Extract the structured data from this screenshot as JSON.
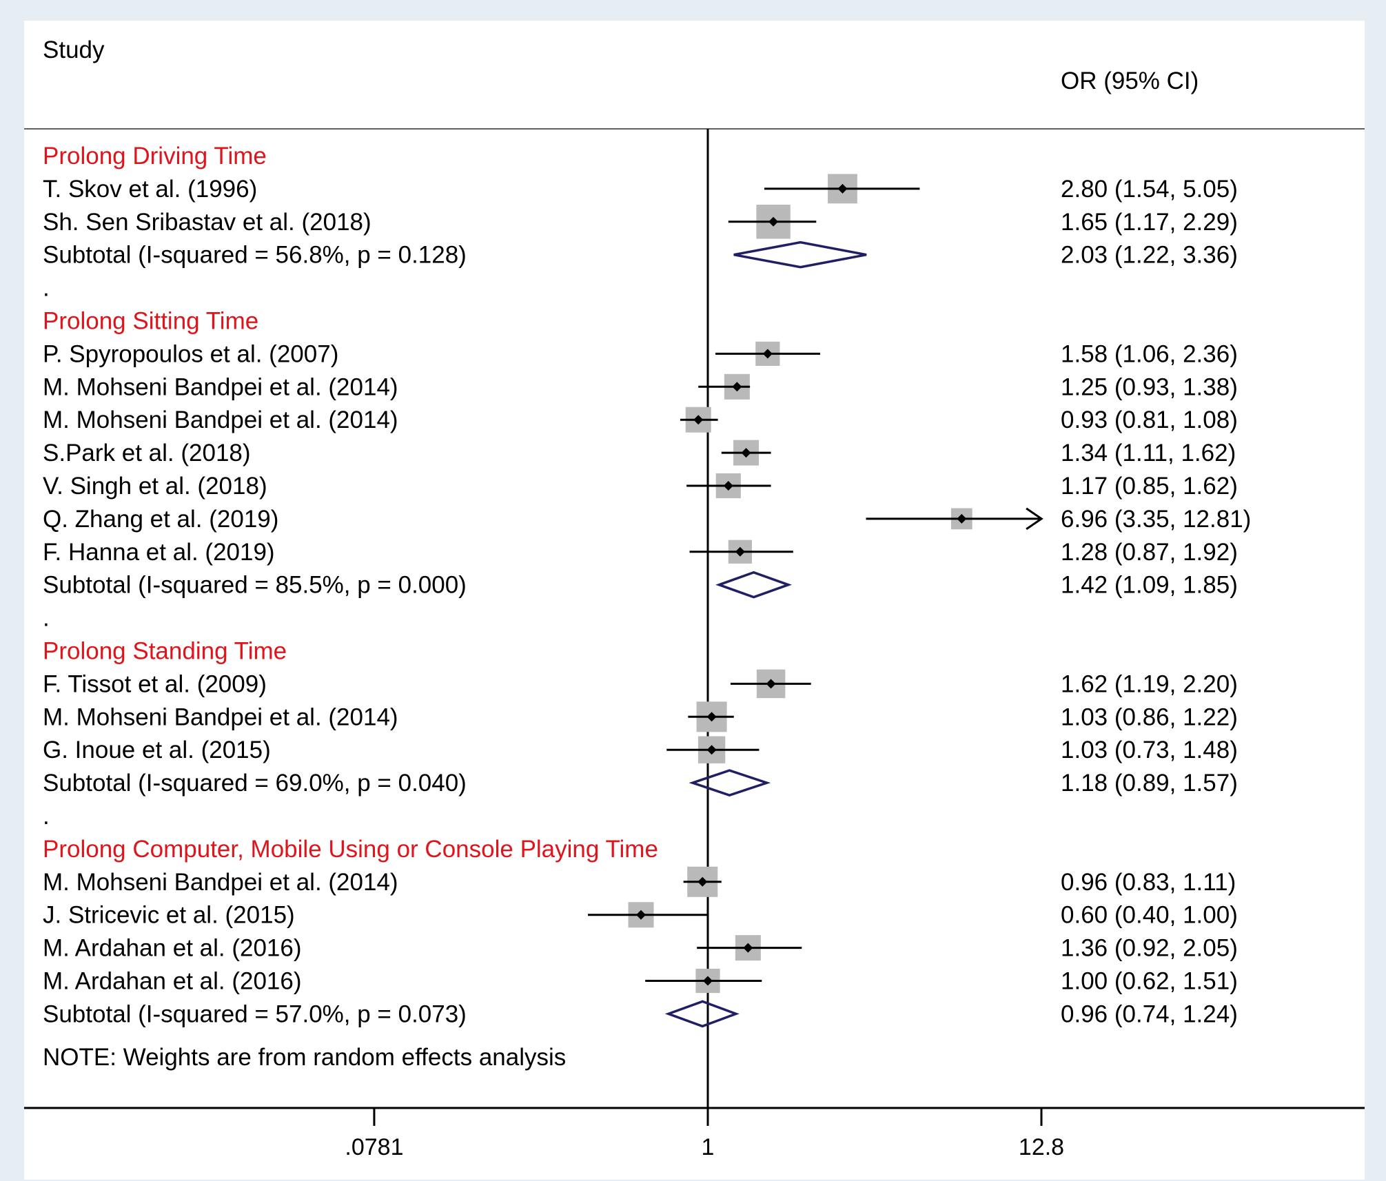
{
  "chart_data": {
    "type": "forest",
    "xscale": "log",
    "header": {
      "study": "Study",
      "effect": "OR (95% CI)"
    },
    "xticks": [
      {
        "value": 0.0781,
        "label": ".0781"
      },
      {
        "value": 1,
        "label": "1"
      },
      {
        "value": 12.8,
        "label": "12.8"
      }
    ],
    "null_line": 1,
    "colors": {
      "group_label": "#e0141b",
      "diamond": "#1f1f66",
      "weight_box": "#b9b9b9",
      "text": "#000000"
    },
    "rows": [
      {
        "kind": "group",
        "label": "Prolong Driving Time"
      },
      {
        "kind": "study",
        "label": "T. Skov et al. (1996)",
        "or": 2.8,
        "lo": 1.54,
        "hi": 5.05,
        "ci_text": "2.80 (1.54, 5.05)",
        "weight": 1.8
      },
      {
        "kind": "study",
        "label": "Sh. Sen Sribastav et al. (2018)",
        "or": 1.65,
        "lo": 1.17,
        "hi": 2.29,
        "ci_text": "1.65 (1.17, 2.29)",
        "weight": 3.0
      },
      {
        "kind": "subtotal",
        "label": "Subtotal  (I-squared = 56.8%, p = 0.128)",
        "or": 2.03,
        "lo": 1.22,
        "hi": 3.36,
        "ci_text": "2.03 (1.22, 3.36)"
      },
      {
        "kind": "spacer",
        "label": "."
      },
      {
        "kind": "group",
        "label": "Prolong Sitting Time"
      },
      {
        "kind": "study",
        "label": "P. Spyropoulos et al. (2007)",
        "or": 1.58,
        "lo": 1.06,
        "hi": 2.36,
        "ci_text": "1.58 (1.06, 2.36)",
        "weight": 0.8
      },
      {
        "kind": "study",
        "label": "M. Mohseni Bandpei et al. (2014)",
        "or": 1.25,
        "lo": 0.93,
        "hi": 1.38,
        "ci_text": "1.25 (0.93, 1.38)",
        "weight": 1.0
      },
      {
        "kind": "study",
        "label": "M. Mohseni Bandpei et al. (2014)",
        "or": 0.93,
        "lo": 0.81,
        "hi": 1.08,
        "ci_text": "0.93 (0.81, 1.08)",
        "weight": 1.0
      },
      {
        "kind": "study",
        "label": "S.Park et al. (2018)",
        "or": 1.34,
        "lo": 1.11,
        "hi": 1.62,
        "ci_text": "1.34 (1.11, 1.62)",
        "weight": 1.0
      },
      {
        "kind": "study",
        "label": "V. Singh et al. (2018)",
        "or": 1.17,
        "lo": 0.85,
        "hi": 1.62,
        "ci_text": "1.17 (0.85, 1.62)",
        "weight": 0.9
      },
      {
        "kind": "study",
        "label": "Q. Zhang et al. (2019)",
        "or": 6.96,
        "lo": 3.35,
        "hi": 12.81,
        "ci_text": "6.96 (3.35, 12.81)",
        "weight": 0.4,
        "arrow": true
      },
      {
        "kind": "study",
        "label": "F. Hanna et al. (2019)",
        "or": 1.28,
        "lo": 0.87,
        "hi": 1.92,
        "ci_text": "1.28 (0.87, 1.92)",
        "weight": 0.7
      },
      {
        "kind": "subtotal",
        "label": "Subtotal  (I-squared = 85.5%, p = 0.000)",
        "or": 1.42,
        "lo": 1.09,
        "hi": 1.85,
        "ci_text": "1.42 (1.09, 1.85)"
      },
      {
        "kind": "spacer",
        "label": "."
      },
      {
        "kind": "group",
        "label": "Prolong Standing Time"
      },
      {
        "kind": "study",
        "label": "F. Tissot et al. (2009)",
        "or": 1.62,
        "lo": 1.19,
        "hi": 2.2,
        "ci_text": "1.62 (1.19, 2.20)",
        "weight": 1.6
      },
      {
        "kind": "study",
        "label": "M. Mohseni Bandpei et al. (2014)",
        "or": 1.03,
        "lo": 0.86,
        "hi": 1.22,
        "ci_text": "1.03 (0.86, 1.22)",
        "weight": 2.0
      },
      {
        "kind": "study",
        "label": "G. Inoue  et al. (2015)",
        "or": 1.03,
        "lo": 0.73,
        "hi": 1.48,
        "ci_text": "1.03 (0.73, 1.48)",
        "weight": 1.3
      },
      {
        "kind": "subtotal",
        "label": "Subtotal  (I-squared = 69.0%, p = 0.040)",
        "or": 1.18,
        "lo": 0.89,
        "hi": 1.57,
        "ci_text": "1.18 (0.89, 1.57)"
      },
      {
        "kind": "spacer",
        "label": "."
      },
      {
        "kind": "group",
        "label": "Prolong Computer, Mobile Using or Console Playing Time"
      },
      {
        "kind": "study",
        "label": "M. Mohseni Bandpei et al. (2014)",
        "or": 0.96,
        "lo": 0.83,
        "hi": 1.11,
        "ci_text": "0.96 (0.83, 1.11)",
        "weight": 2.0
      },
      {
        "kind": "study",
        "label": "J. Stricevic et al. (2015)",
        "or": 0.6,
        "lo": 0.4,
        "hi": 1.0,
        "ci_text": "0.60 (0.40, 1.00)",
        "weight": 1.0
      },
      {
        "kind": "study",
        "label": "M. Ardahan et al. (2016)",
        "or": 1.36,
        "lo": 0.92,
        "hi": 2.05,
        "ci_text": "1.36 (0.92, 2.05)",
        "weight": 1.0
      },
      {
        "kind": "study",
        "label": "M. Ardahan et al. (2016)",
        "or": 1.0,
        "lo": 0.62,
        "hi": 1.51,
        "ci_text": "1.00 (0.62, 1.51)",
        "weight": 0.8
      },
      {
        "kind": "subtotal",
        "label": "Subtotal  (I-squared = 57.0%, p = 0.073)",
        "or": 0.96,
        "lo": 0.74,
        "hi": 1.24,
        "ci_text": "0.96 (0.74, 1.24)"
      }
    ],
    "note": "NOTE: Weights are from random effects analysis"
  }
}
